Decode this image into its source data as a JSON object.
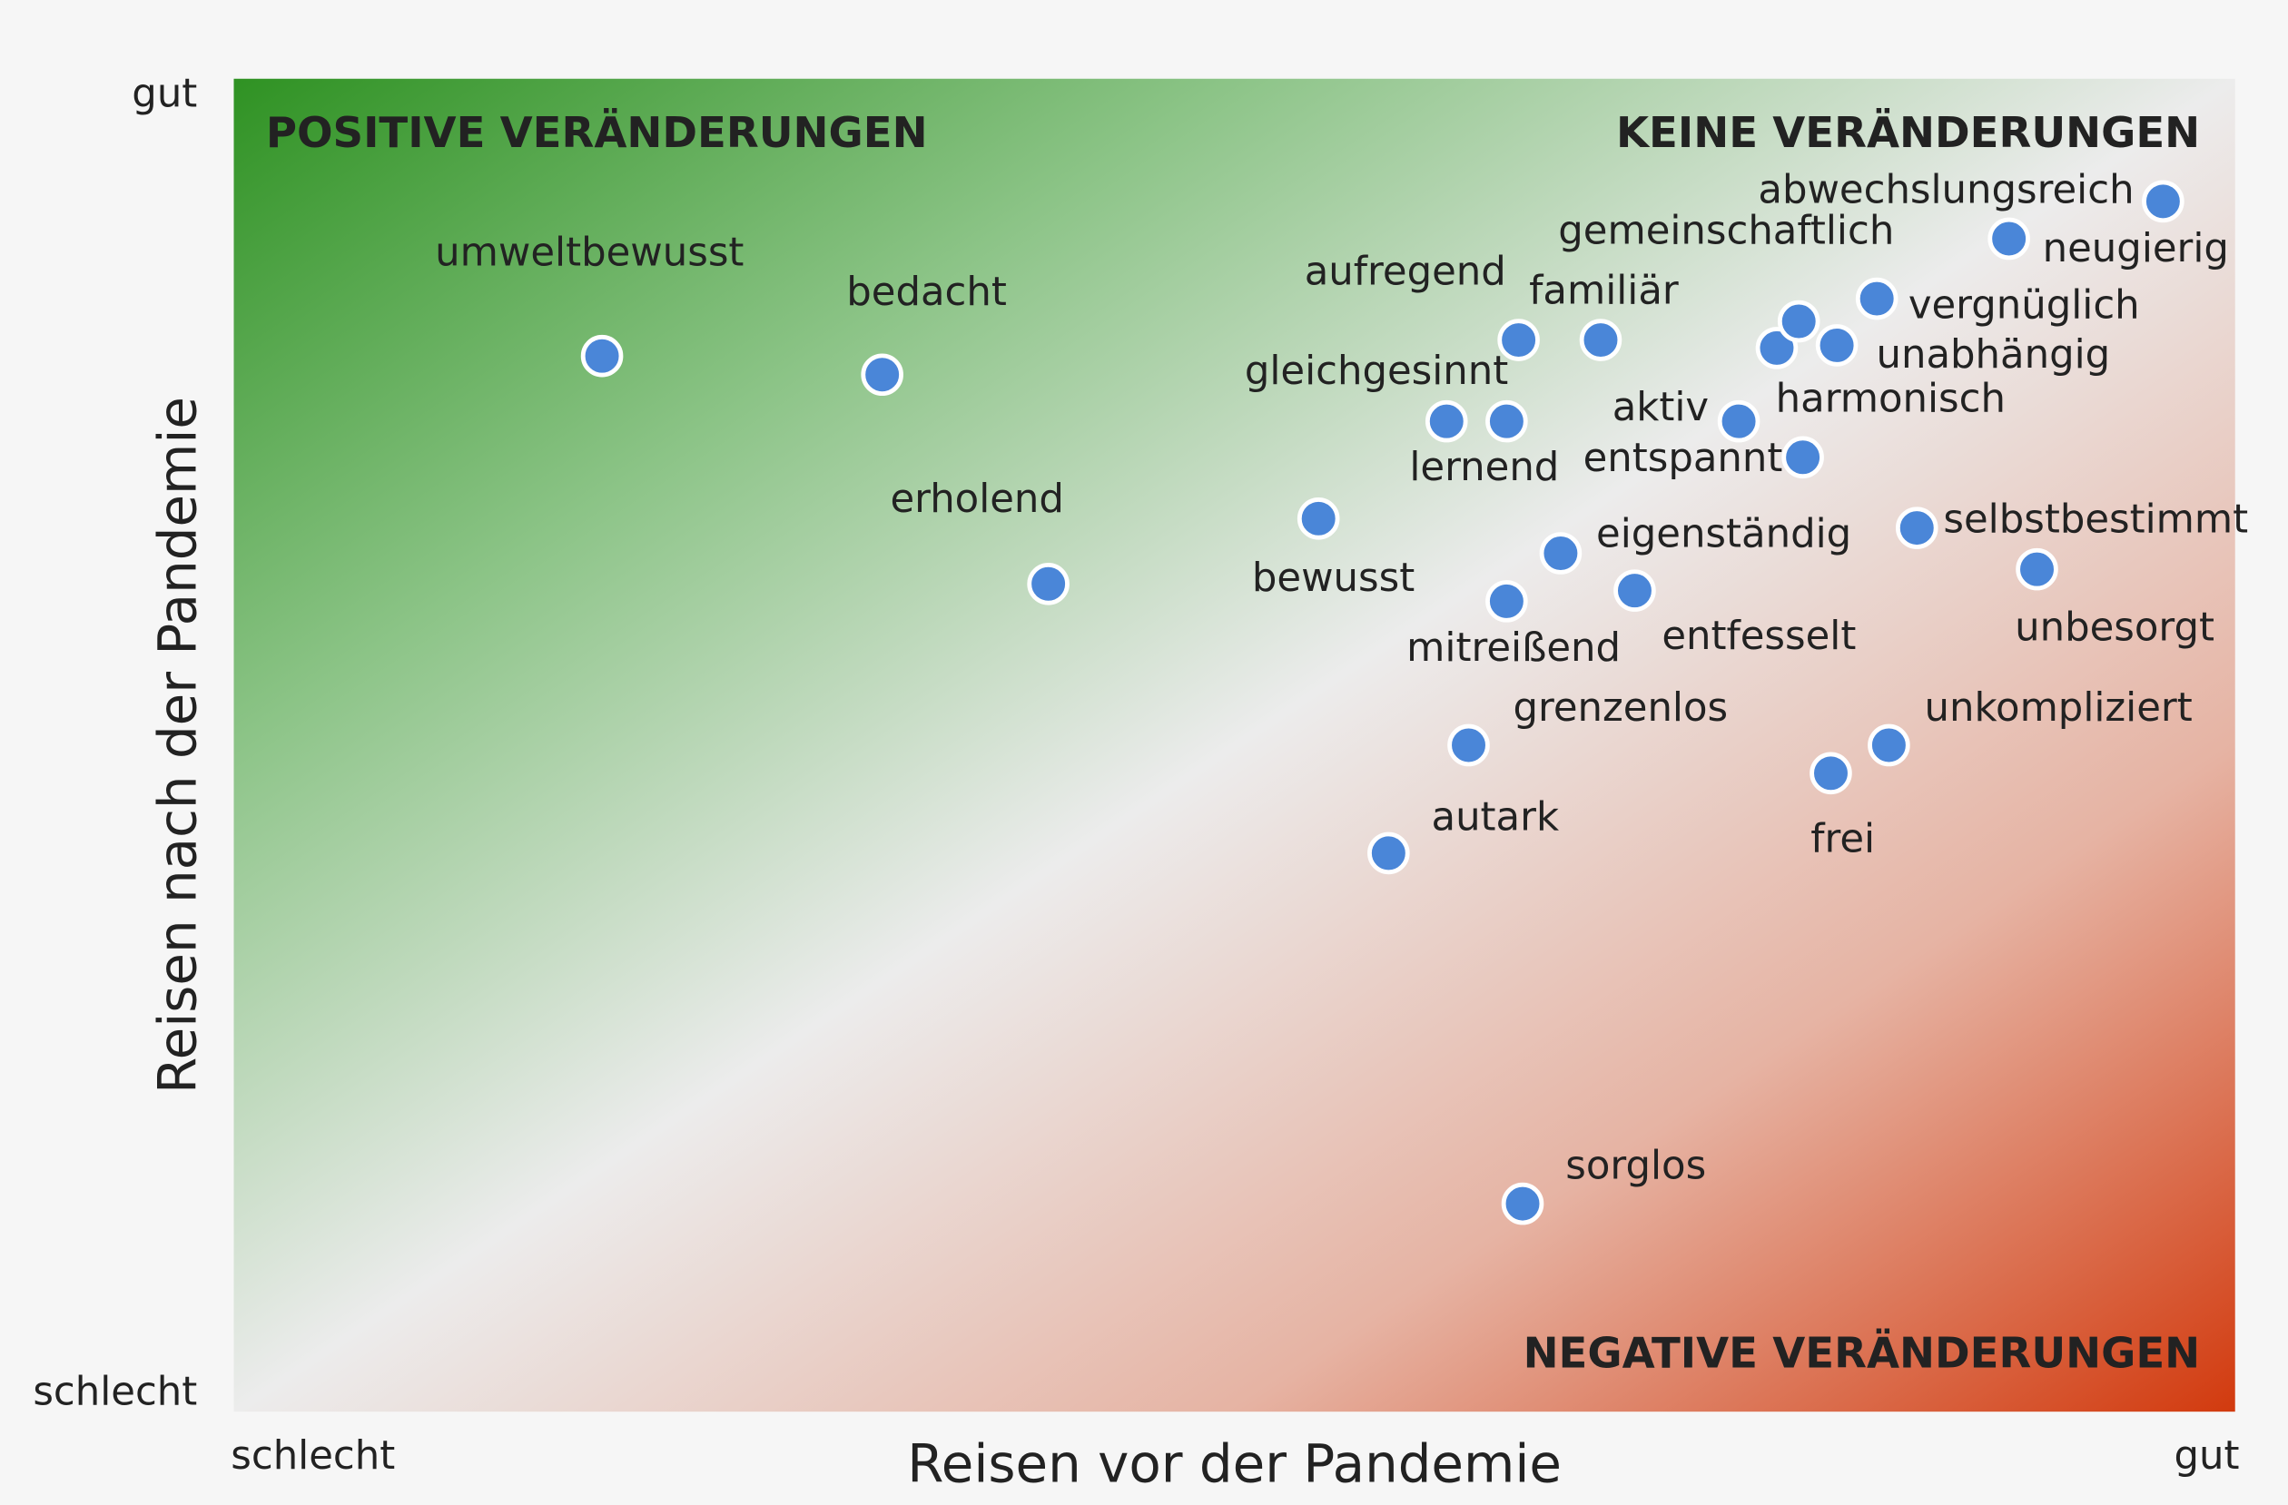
{
  "chart_data": {
    "type": "scatter",
    "x_label": "Reisen vor der Pandemie",
    "y_label": "Reisen nach der Pandemie",
    "xlim": [
      0,
      100
    ],
    "ylim": [
      0,
      100
    ],
    "xticks": [
      {
        "value": 0,
        "label": "schlecht"
      },
      {
        "value": 100,
        "label": "gut"
      }
    ],
    "yticks": [
      {
        "value": 0,
        "label": "schlecht"
      },
      {
        "value": 100,
        "label": "gut"
      }
    ],
    "annotations": [
      "POSITIVE VERÄNDERUNGEN",
      "KEINE VERÄNDERUNGEN",
      "NEGATIVE VERÄNDERUNGEN"
    ],
    "color": "#4a86d8",
    "points": [
      {
        "label": "umweltbewusst",
        "x": 18.4,
        "y": 79.2
      },
      {
        "label": "bedacht",
        "x": 32.4,
        "y": 77.8
      },
      {
        "label": "erholend",
        "x": 40.7,
        "y": 62.1
      },
      {
        "label": "bewusst",
        "x": 54.2,
        "y": 67.0
      },
      {
        "label": "gleichgesinnt",
        "x": 60.6,
        "y": 74.3
      },
      {
        "label": "lernend",
        "x": 63.6,
        "y": 74.3
      },
      {
        "label": "aufregend",
        "x": 64.2,
        "y": 80.4
      },
      {
        "label": "familiär",
        "x": 68.3,
        "y": 80.4
      },
      {
        "label": "eigenständig",
        "x": 66.3,
        "y": 64.4
      },
      {
        "label": "mitreißend",
        "x": 63.6,
        "y": 60.8
      },
      {
        "label": "entfesselt",
        "x": 70.0,
        "y": 61.6
      },
      {
        "label": "aktiv",
        "x": 75.2,
        "y": 74.3
      },
      {
        "label": "entspannt",
        "x": 78.4,
        "y": 71.6
      },
      {
        "label": "harmonisch",
        "x": 77.1,
        "y": 79.8
      },
      {
        "label": "gemeinschaftlich",
        "x": 78.2,
        "y": 81.8
      },
      {
        "label": "unabhängig",
        "x": 80.1,
        "y": 80.0
      },
      {
        "label": "vergnüglich",
        "x": 82.1,
        "y": 83.5
      },
      {
        "label": "neugierig",
        "x": 88.7,
        "y": 88.0
      },
      {
        "label": "abwechslungsreich",
        "x": 96.4,
        "y": 90.8
      },
      {
        "label": "selbstbestimmt",
        "x": 84.1,
        "y": 66.3
      },
      {
        "label": "unbesorgt",
        "x": 90.1,
        "y": 63.2
      },
      {
        "label": "unkompliziert",
        "x": 82.7,
        "y": 50.0
      },
      {
        "label": "frei",
        "x": 79.8,
        "y": 47.9
      },
      {
        "label": "grenzenlos",
        "x": 61.7,
        "y": 50.0
      },
      {
        "label": "autark",
        "x": 57.7,
        "y": 41.9
      },
      {
        "label": "sorglos",
        "x": 64.4,
        "y": 15.6
      }
    ]
  }
}
